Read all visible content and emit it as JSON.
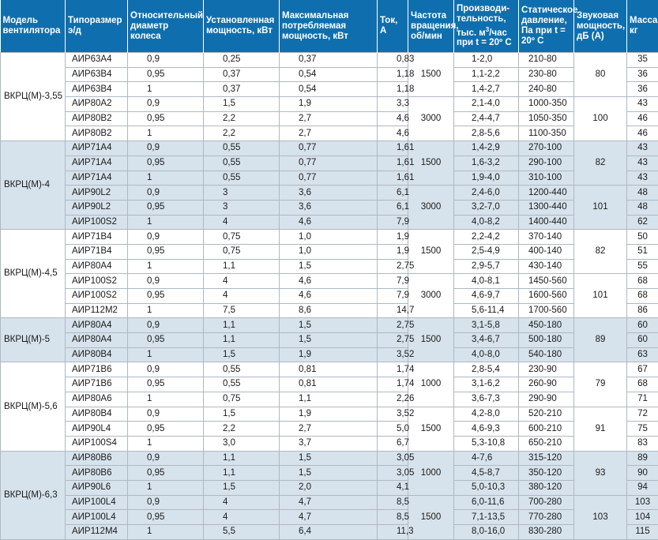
{
  "headers": {
    "model": "Модель вентилятора",
    "size": "Типоразмер э/д",
    "wheel": "Относительный диаметр колеса",
    "power": "Установленная мощность, кВт",
    "max_power": "Максимальная потребляемая мощность, кВт",
    "current": "Ток, А",
    "speed": "Частота вращения, об/мин",
    "productivity": "Производи-тельность, тыс. м³/час при t = 20º С",
    "pressure": "Статическое давление, Па при t = 20º С",
    "sound": "Звуковая мощность, дБ (А)",
    "mass": "Масса, кг"
  },
  "groups": [
    {
      "model": "ВКРЦ(М)-3,55",
      "rows": [
        [
          "АИР63А4",
          "0,9",
          "0,25",
          "0,37",
          "0,83",
          "1-2,0",
          "210-80",
          "35"
        ],
        [
          "АИР63В4",
          "0,95",
          "0,37",
          "0,54",
          "1,18",
          "1,1-2,2",
          "230-80",
          "36"
        ],
        [
          "АИР63В4",
          "1",
          "0,37",
          "0,54",
          "1,18",
          "1,4-2,7",
          "240-80",
          "36"
        ],
        [
          "АИР80А2",
          "0,9",
          "1,5",
          "1,9",
          "3,3",
          "2,1-4,0",
          "1000-350",
          "43"
        ],
        [
          "АИР80В2",
          "0,95",
          "2,2",
          "2,7",
          "4,6",
          "2,4-4,7",
          "1050-350",
          "46"
        ],
        [
          "АИР80В2",
          "1",
          "2,2",
          "2,7",
          "4,6",
          "2,8-5,6",
          "1100-350",
          "46"
        ]
      ],
      "speeds": [
        "1500",
        "3000"
      ],
      "sounds": [
        "80",
        "100"
      ]
    },
    {
      "model": "ВКРЦ(М)-4",
      "rows": [
        [
          "АИР71А4",
          "0,9",
          "0,55",
          "0,77",
          "1,61",
          "1,4-2,9",
          "270-100",
          "43"
        ],
        [
          "АИР71А4",
          "0,95",
          "0,55",
          "0,77",
          "1,61",
          "1,6-3,2",
          "290-100",
          "43"
        ],
        [
          "АИР71А4",
          "1",
          "0,55",
          "0,77",
          "1,61",
          "1,9-4,0",
          "310-100",
          "43"
        ],
        [
          "АИР90L2",
          "0,9",
          "3",
          "3,6",
          "6,1",
          "2,4-6,0",
          "1200-440",
          "48"
        ],
        [
          "АИР90L2",
          "0,95",
          "3",
          "3,6",
          "6,1",
          "3,2-7,0",
          "1300-440",
          "48"
        ],
        [
          "АИР100S2",
          "1",
          "4",
          "4,6",
          "7,9",
          "4,0-8,2",
          "1400-440",
          "62"
        ]
      ],
      "speeds": [
        "1500",
        "3000"
      ],
      "sounds": [
        "82",
        "101"
      ]
    },
    {
      "model": "ВКРЦ(М)-4,5",
      "rows": [
        [
          "АИР71В4",
          "0,9",
          "0,75",
          "1,0",
          "1,9",
          "2,2-4,2",
          "370-140",
          "50"
        ],
        [
          "АИР71В4",
          "0,95",
          "0,75",
          "1,0",
          "1,9",
          "2,5-4,9",
          "400-140",
          "51"
        ],
        [
          "АИР80А4",
          "1",
          "1,1",
          "1,5",
          "2,75",
          "2,9-5,7",
          "430-140",
          "55"
        ],
        [
          "АИР100S2",
          "0,9",
          "4",
          "4,6",
          "7,9",
          "4,0-8,1",
          "1450-560",
          "68"
        ],
        [
          "АИР100S2",
          "0,95",
          "4",
          "4,6",
          "7,9",
          "4,6-9,7",
          "1600-560",
          "68"
        ],
        [
          "АИР112М2",
          "1",
          "7,5",
          "8,6",
          "14,7",
          "5,6-11,4",
          "1700-560",
          "86"
        ]
      ],
      "speeds": [
        "1500",
        "3000"
      ],
      "sounds": [
        "82",
        "101"
      ]
    },
    {
      "model": "ВКРЦ(М)-5",
      "rows": [
        [
          "АИР80А4",
          "0,9",
          "1,1",
          "1,5",
          "2,75",
          "3,1-5,8",
          "450-180",
          "60"
        ],
        [
          "АИР80А4",
          "0,95",
          "1,1",
          "1,5",
          "2,75",
          "3,4-6,7",
          "500-180",
          "60"
        ],
        [
          "АИР80В4",
          "1",
          "1,5",
          "1,9",
          "3,52",
          "4,0-8,0",
          "540-180",
          "63"
        ]
      ],
      "speeds": [
        "1500"
      ],
      "sounds": [
        "89"
      ]
    },
    {
      "model": "ВКРЦ(М)-5,6",
      "rows": [
        [
          "АИР71В6",
          "0,9",
          "0,55",
          "0,81",
          "1,74",
          "2,8-5,4",
          "230-90",
          "67"
        ],
        [
          "АИР71В6",
          "0,95",
          "0,55",
          "0,81",
          "1,74",
          "3,1-6,2",
          "260-90",
          "68"
        ],
        [
          "АИР80А6",
          "1",
          "0,75",
          "1,1",
          "2,26",
          "3,6-7,3",
          "290-90",
          "71"
        ],
        [
          "АИР80В4",
          "0,9",
          "1,5",
          "1,9",
          "3,52",
          "4,2-8,0",
          "520-210",
          "72"
        ],
        [
          "АИР90L4",
          "0,95",
          "2,2",
          "2,7",
          "5,0",
          "4,6-9,3",
          "600-210",
          "75"
        ],
        [
          "АИР100S4",
          "1",
          "3,0",
          "3,7",
          "6,7",
          "5,3-10,8",
          "650-210",
          "83"
        ]
      ],
      "speeds": [
        "1000",
        "1500"
      ],
      "sounds": [
        "79",
        "91"
      ]
    },
    {
      "model": "ВКРЦ(М)-6,3",
      "rows": [
        [
          "АИР80В6",
          "0,9",
          "1,1",
          "1,5",
          "3,05",
          "4-7,6",
          "315-120",
          "89"
        ],
        [
          "АИР80В6",
          "0,95",
          "1,1",
          "1,5",
          "3,05",
          "4,5-8,7",
          "350-120",
          "90"
        ],
        [
          "АИР90L6",
          "1",
          "1,5",
          "2,0",
          "4,1",
          "5,0-10,3",
          "380-120",
          "94"
        ],
        [
          "АИР100L4",
          "0,9",
          "4",
          "4,7",
          "8,5",
          "6,0-11,6",
          "700-280",
          "103"
        ],
        [
          "АИР100L4",
          "0,95",
          "4",
          "4,7",
          "8,5",
          "7,1-13,5",
          "770-280",
          "104"
        ],
        [
          "АИР112М4",
          "1",
          "5,5",
          "6,4",
          "11,3",
          "8,0-16,0",
          "830-280",
          "115"
        ]
      ],
      "speeds": [
        "1000",
        "1500"
      ],
      "sounds": [
        "93",
        "103"
      ]
    }
  ]
}
